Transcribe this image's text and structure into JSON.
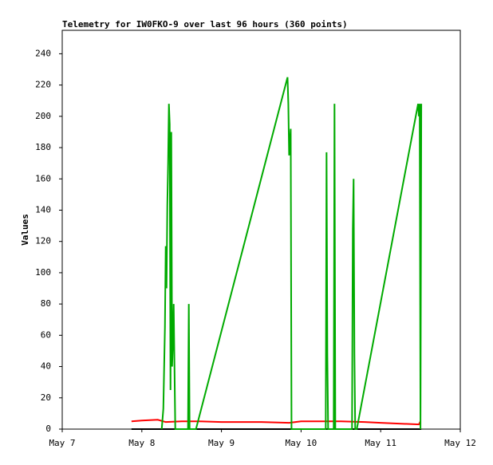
{
  "chart_data": {
    "type": "line",
    "title": "Telemetry for IW0FKO-9 over last 96 hours (360 points)",
    "y_label": "Values",
    "xlim": [
      7,
      12
    ],
    "xticks": [
      {
        "value": 7,
        "label": "May 7"
      },
      {
        "value": 8,
        "label": "May 8"
      },
      {
        "value": 9,
        "label": "May 9"
      },
      {
        "value": 10,
        "label": "May 10"
      },
      {
        "value": 11,
        "label": "May 11"
      },
      {
        "value": 12,
        "label": "May 12"
      }
    ],
    "ylim": [
      0,
      255
    ],
    "yticks": [
      0,
      20,
      40,
      60,
      80,
      100,
      120,
      140,
      160,
      180,
      200,
      220,
      240
    ],
    "series": [
      {
        "color": "#000000",
        "x": [
          7.87,
          11.51
        ],
        "values": [
          0,
          0
        ]
      },
      {
        "color": "#ff0000",
        "x": [
          7.87,
          8.0,
          8.2,
          8.3,
          8.5,
          8.7,
          9.0,
          9.5,
          9.85,
          10.0,
          10.5,
          10.8,
          11.0,
          11.48,
          11.5
        ],
        "values": [
          5,
          5.5,
          6,
          4.5,
          5,
          5,
          4.5,
          4.5,
          4,
          5,
          5,
          4.5,
          4,
          3,
          5
        ]
      },
      {
        "color": "#00aa00",
        "x": [
          8.25,
          8.27,
          8.29,
          8.3,
          8.31,
          8.32,
          8.33,
          8.34,
          8.35,
          8.36,
          8.37,
          8.38,
          8.39,
          8.4,
          8.41,
          8.42,
          8.58,
          8.59,
          8.6,
          8.68,
          9.83,
          9.84,
          9.85,
          9.87,
          9.88,
          10.31,
          10.32,
          10.33,
          10.34,
          10.41,
          10.42,
          10.43,
          10.64,
          10.65,
          10.66,
          10.67,
          10.68,
          10.7,
          11.47,
          11.48,
          11.49,
          11.5,
          11.51
        ],
        "values": [
          0,
          13,
          65,
          117,
          90,
          143,
          170,
          208,
          195,
          25,
          190,
          40,
          55,
          80,
          40,
          0,
          0,
          80,
          0,
          0,
          225,
          208,
          175,
          192,
          0,
          0,
          177,
          48,
          0,
          0,
          208,
          0,
          0,
          128,
          160,
          48,
          0,
          0,
          208,
          200,
          208,
          0,
          208
        ]
      }
    ]
  }
}
